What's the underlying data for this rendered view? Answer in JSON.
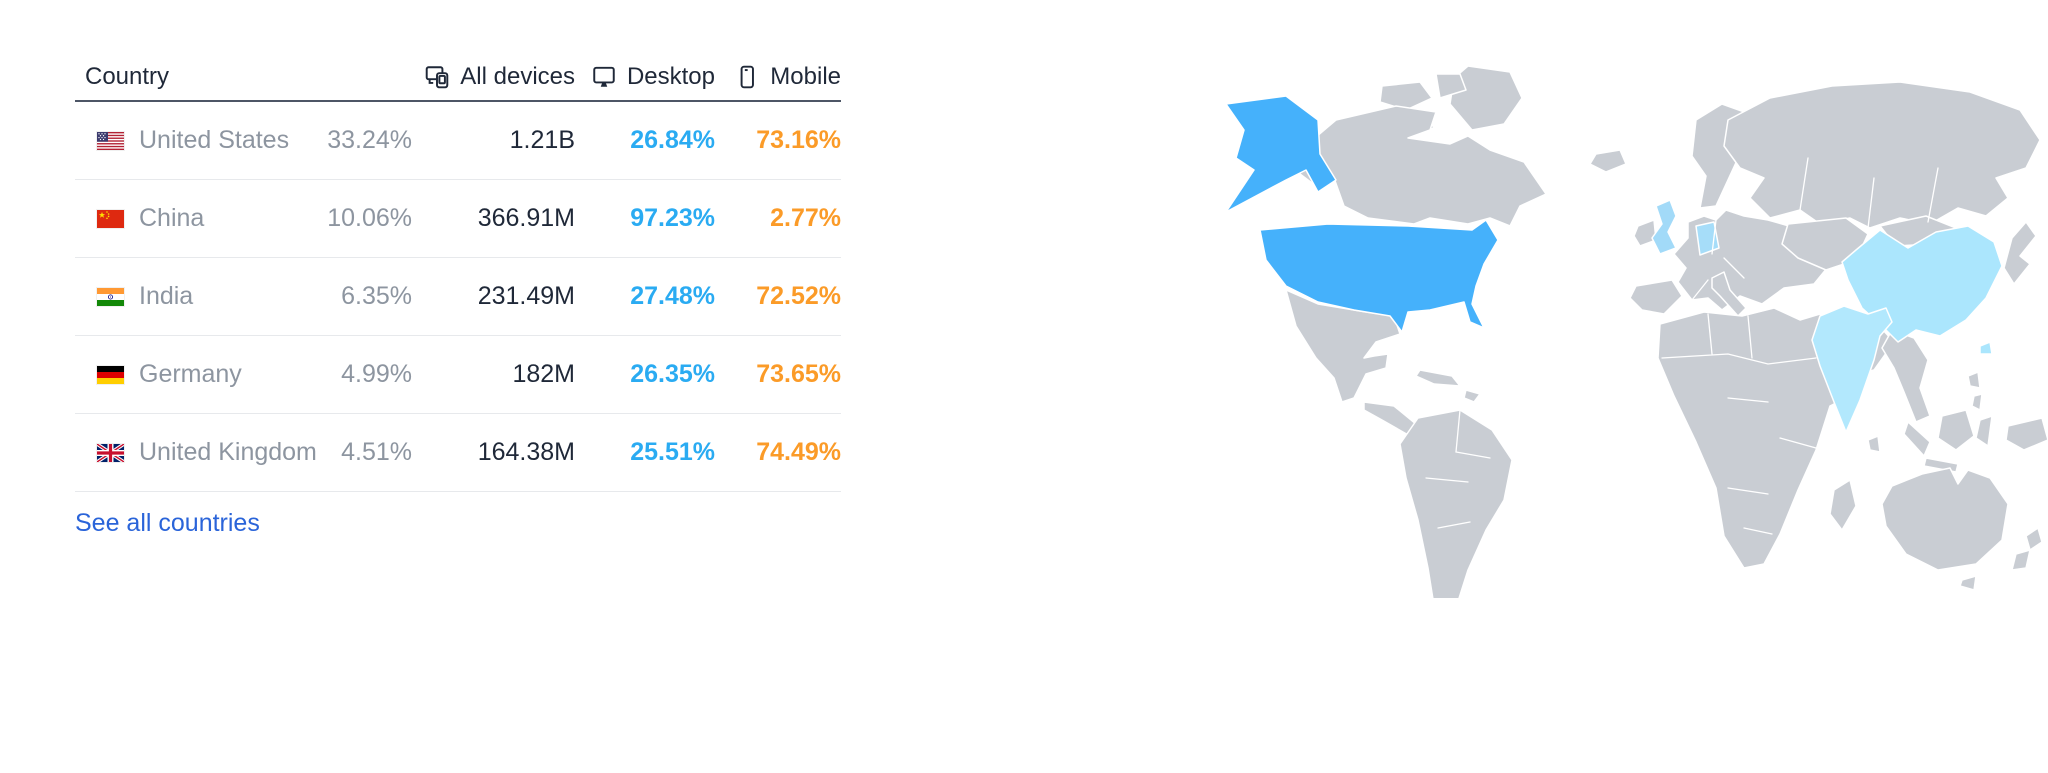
{
  "table": {
    "columns": {
      "country": "Country",
      "all_devices": "All devices",
      "desktop": "Desktop",
      "mobile": "Mobile"
    },
    "column_icons": {
      "all_devices": "all-devices-icon",
      "desktop": "desktop-icon",
      "mobile": "mobile-icon"
    },
    "rows": [
      {
        "country": "United States",
        "flag": "us-flag",
        "share": "33.24%",
        "all_devices": "1.21B",
        "desktop": "26.84%",
        "mobile": "73.16%"
      },
      {
        "country": "China",
        "flag": "cn-flag",
        "share": "10.06%",
        "all_devices": "366.91M",
        "desktop": "97.23%",
        "mobile": "2.77%"
      },
      {
        "country": "India",
        "flag": "in-flag",
        "share": "6.35%",
        "all_devices": "231.49M",
        "desktop": "27.48%",
        "mobile": "72.52%"
      },
      {
        "country": "Germany",
        "flag": "de-flag",
        "share": "4.99%",
        "all_devices": "182M",
        "desktop": "26.35%",
        "mobile": "73.65%"
      },
      {
        "country": "United Kingdom",
        "flag": "gb-flag",
        "share": "4.51%",
        "all_devices": "164.38M",
        "desktop": "25.51%",
        "mobile": "74.49%"
      }
    ],
    "see_all": "See all countries"
  },
  "map": {
    "type": "world-choropleth",
    "highlighted_countries": [
      {
        "name": "United States",
        "level": "high"
      },
      {
        "name": "China",
        "level": "low"
      },
      {
        "name": "India",
        "level": "low"
      },
      {
        "name": "Germany",
        "level": "low"
      },
      {
        "name": "United Kingdom",
        "level": "low"
      }
    ]
  },
  "colors": {
    "desktop_blue": "#2aabf2",
    "mobile_orange": "#fb9b28",
    "link_blue": "#2a64d9",
    "text_dark": "#1f2838",
    "text_gray": "#8d95a0",
    "header_border": "#4d5666",
    "row_border": "#e7e9ec",
    "map_land": "#c9cdd3",
    "map_us": "#45b1fb",
    "map_china": "#abe6fd",
    "map_india": "#b2e8fd",
    "map_germany": "#a6ddf9",
    "map_uk": "#a2daf8"
  }
}
